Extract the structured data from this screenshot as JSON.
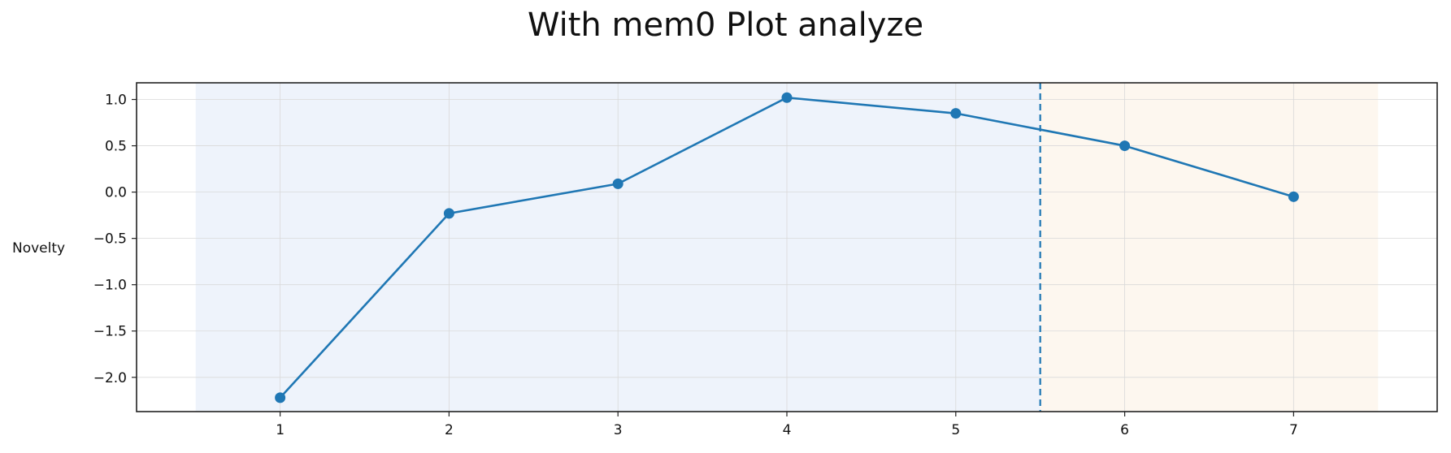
{
  "chart_data": {
    "type": "line",
    "title": "With mem0 Plot analyze",
    "xlabel": "",
    "ylabel": "Novelty",
    "x": [
      1,
      2,
      3,
      4,
      5,
      6,
      7
    ],
    "series": [
      {
        "values": [
          -2.22,
          -0.23,
          0.09,
          1.02,
          0.85,
          0.5,
          -0.05
        ],
        "color": "#1f77b4",
        "marker": "circle"
      }
    ],
    "xlim": [
      0.15,
      7.85
    ],
    "ylim": [
      -2.37,
      1.18
    ],
    "xticks": [
      1,
      2,
      3,
      4,
      5,
      6,
      7
    ],
    "yticks": [
      1.0,
      0.5,
      0.0,
      -0.5,
      -1.0,
      -1.5,
      -2.0
    ],
    "ytick_labels": [
      "1.0",
      "0.5",
      "0.0",
      "−0.5",
      "−1.0",
      "−1.5",
      "−2.0"
    ],
    "grid": true,
    "shaded_regions": [
      {
        "x_start": 0.5,
        "x_end": 5.5,
        "color": "#eef3fb"
      },
      {
        "x_start": 5.5,
        "x_end": 7.5,
        "color": "#fdf7ef"
      }
    ],
    "vertical_lines": [
      {
        "x": 5.5,
        "style": "dashed",
        "color": "#1f77b4"
      }
    ],
    "legend": "none"
  }
}
